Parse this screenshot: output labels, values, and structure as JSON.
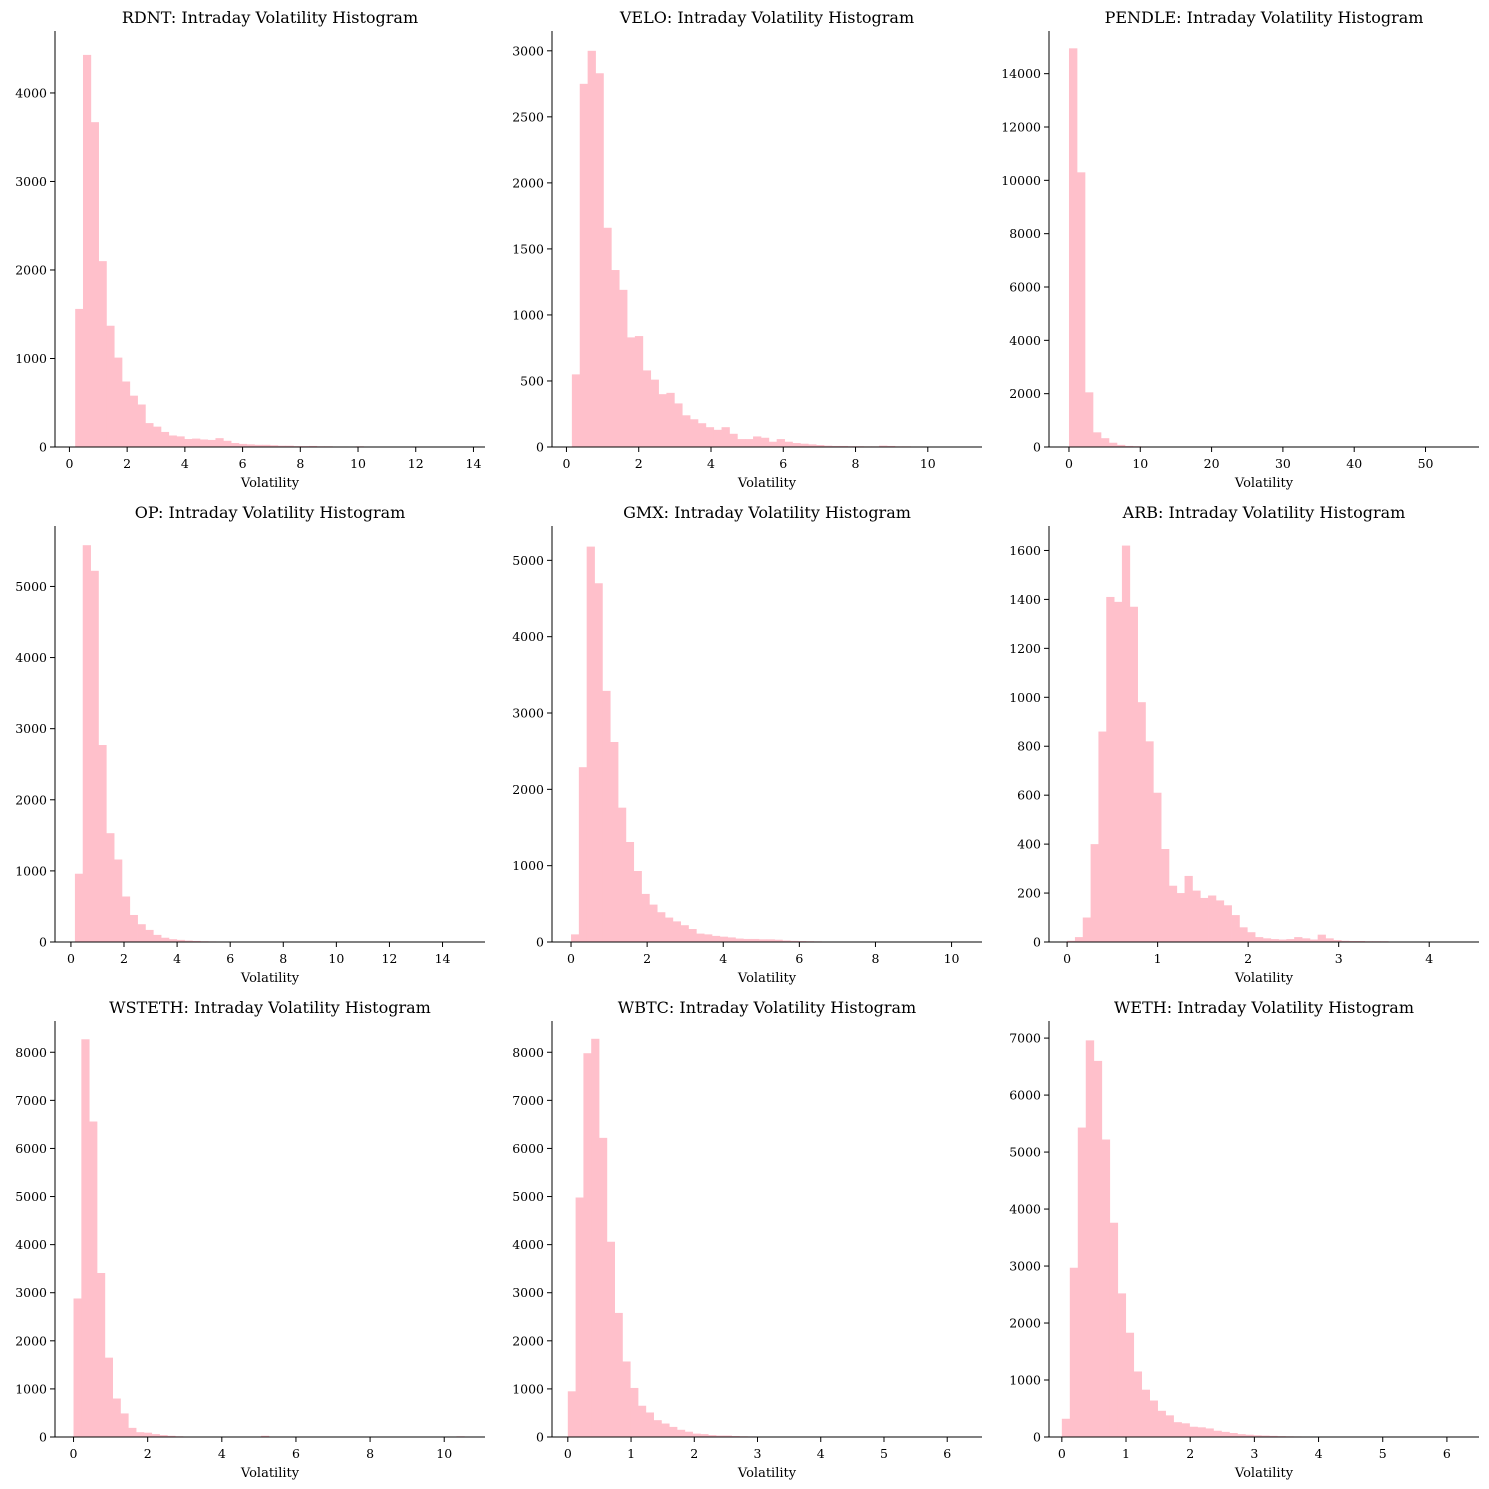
{
  "figure": {
    "bar_color": "#ffc0cb",
    "axis_color": "#000000",
    "background": "#ffffff"
  },
  "chart_data": [
    {
      "type": "bar",
      "title": "RDNT: Intraday Volatility Histogram",
      "xlabel": "Volatility",
      "ylabel": "",
      "xlim": [
        -0.5,
        14.4
      ],
      "ylim": [
        0,
        4700
      ],
      "xticks": [
        0,
        2,
        4,
        6,
        8,
        10,
        12,
        14
      ],
      "yticks": [
        0,
        1000,
        2000,
        3000,
        4000
      ],
      "bin_start": 0.2,
      "bin_width": 0.27,
      "values": [
        1560,
        4430,
        3670,
        2100,
        1370,
        1010,
        740,
        580,
        480,
        270,
        230,
        170,
        130,
        120,
        90,
        95,
        85,
        80,
        100,
        70,
        45,
        35,
        30,
        25,
        25,
        20,
        15,
        15,
        10,
        10,
        12,
        8,
        8,
        6,
        6,
        5,
        8,
        5,
        5,
        5,
        4,
        5,
        4,
        6,
        3,
        4,
        3,
        3,
        3,
        4
      ],
      "grid": false,
      "legend": "none"
    },
    {
      "type": "bar",
      "title": "VELO: Intraday Volatility Histogram",
      "xlabel": "Volatility",
      "ylabel": "",
      "xlim": [
        -0.4,
        11.5
      ],
      "ylim": [
        0,
        3150
      ],
      "xticks": [
        0,
        2,
        4,
        6,
        8,
        10
      ],
      "yticks": [
        0,
        500,
        1000,
        1500,
        2000,
        2500,
        3000
      ],
      "bin_start": 0.15,
      "bin_width": 0.218,
      "values": [
        550,
        2750,
        3000,
        2830,
        1660,
        1340,
        1190,
        830,
        840,
        580,
        510,
        400,
        410,
        330,
        240,
        210,
        180,
        150,
        130,
        150,
        100,
        60,
        60,
        80,
        70,
        40,
        60,
        40,
        30,
        25,
        20,
        15,
        10,
        8,
        8,
        6,
        6,
        5,
        5,
        10,
        8,
        5,
        5,
        4,
        4,
        3,
        3,
        3,
        2,
        2
      ],
      "grid": false,
      "legend": "none"
    },
    {
      "type": "bar",
      "title": "PENDLE: Intraday Volatility Histogram",
      "xlabel": "Volatility",
      "ylabel": "",
      "xlim": [
        -2.8,
        57.5
      ],
      "ylim": [
        0,
        15600
      ],
      "xticks": [
        0,
        10,
        20,
        30,
        40,
        50
      ],
      "yticks": [
        0,
        2000,
        4000,
        6000,
        8000,
        10000,
        12000,
        14000
      ],
      "bin_start": 0.0,
      "bin_width": 1.12,
      "values": [
        14950,
        10300,
        2050,
        550,
        330,
        160,
        80,
        40,
        30,
        20,
        10,
        8,
        6,
        5,
        4,
        3,
        3,
        2,
        2,
        2,
        2,
        2,
        1,
        1,
        1,
        1,
        1,
        1,
        1,
        1,
        1,
        1,
        1,
        1,
        1,
        1,
        1,
        1,
        1,
        1,
        1,
        1,
        1,
        1,
        1,
        1,
        1,
        1,
        1,
        20
      ],
      "grid": false,
      "legend": "none"
    },
    {
      "type": "bar",
      "title": "OP: Intraday Volatility Histogram",
      "xlabel": "Volatility",
      "ylabel": "",
      "xlim": [
        -0.6,
        15.6
      ],
      "ylim": [
        0,
        5850
      ],
      "xticks": [
        0,
        2,
        4,
        6,
        8,
        10,
        12,
        14
      ],
      "yticks": [
        0,
        1000,
        2000,
        3000,
        4000,
        5000
      ],
      "bin_start": 0.15,
      "bin_width": 0.295,
      "values": [
        960,
        5580,
        5220,
        2770,
        1530,
        1160,
        640,
        380,
        250,
        170,
        100,
        60,
        40,
        30,
        20,
        15,
        10,
        8,
        6,
        5,
        4,
        3,
        3,
        3,
        2,
        2,
        2,
        2,
        2,
        2,
        1,
        1,
        1,
        1,
        1,
        1,
        1,
        1,
        1,
        1,
        1,
        1,
        1,
        1,
        1,
        1,
        1,
        1,
        1,
        2
      ],
      "grid": false,
      "legend": "none"
    },
    {
      "type": "bar",
      "title": "GMX: Intraday Volatility Histogram",
      "xlabel": "Volatility",
      "ylabel": "",
      "xlim": [
        -0.5,
        10.8
      ],
      "ylim": [
        0,
        5450
      ],
      "xticks": [
        0,
        2,
        4,
        6,
        8,
        10
      ],
      "yticks": [
        0,
        1000,
        2000,
        3000,
        4000,
        5000
      ],
      "bin_start": 0.0,
      "bin_width": 0.2057,
      "values": [
        100,
        2290,
        5180,
        4700,
        3290,
        2620,
        1760,
        1310,
        930,
        630,
        490,
        390,
        320,
        270,
        220,
        170,
        110,
        100,
        80,
        70,
        60,
        45,
        40,
        40,
        35,
        35,
        30,
        20,
        15,
        12,
        10,
        8,
        6,
        5,
        5,
        4,
        4,
        3,
        3,
        3,
        2,
        2,
        2,
        2,
        2,
        2,
        2,
        1,
        1,
        1
      ],
      "grid": false,
      "legend": "none"
    },
    {
      "type": "bar",
      "title": "ARB: Intraday Volatility Histogram",
      "xlabel": "Volatility",
      "ylabel": "",
      "xlim": [
        -0.2,
        4.55
      ],
      "ylim": [
        0,
        1700
      ],
      "xticks": [
        0,
        1,
        2,
        3,
        4
      ],
      "yticks": [
        0,
        200,
        400,
        600,
        800,
        1000,
        1200,
        1400,
        1600
      ],
      "bin_start": 0.0,
      "bin_width": 0.0865,
      "values": [
        5,
        20,
        100,
        400,
        860,
        1410,
        1390,
        1620,
        1370,
        980,
        820,
        610,
        380,
        230,
        200,
        270,
        210,
        180,
        190,
        170,
        150,
        110,
        60,
        40,
        20,
        15,
        12,
        10,
        12,
        20,
        15,
        10,
        30,
        15,
        8,
        5,
        4,
        4,
        3,
        3,
        3,
        2,
        2,
        2,
        2,
        2,
        2,
        1,
        1,
        1
      ],
      "grid": false,
      "legend": "none"
    },
    {
      "type": "bar",
      "title": "WSTETH: Intraday Volatility Histogram",
      "xlabel": "Volatility",
      "ylabel": "",
      "xlim": [
        -0.5,
        11.1
      ],
      "ylim": [
        0,
        8650
      ],
      "xticks": [
        0,
        2,
        4,
        6,
        8,
        10
      ],
      "yticks": [
        0,
        1000,
        2000,
        3000,
        4000,
        5000,
        6000,
        7000,
        8000
      ],
      "bin_start": 0.0,
      "bin_width": 0.2108,
      "values": [
        2880,
        8270,
        6560,
        3410,
        1650,
        800,
        490,
        190,
        100,
        90,
        60,
        40,
        25,
        15,
        10,
        8,
        6,
        5,
        4,
        4,
        3,
        3,
        3,
        3,
        25,
        5,
        3,
        3,
        2,
        2,
        2,
        2,
        2,
        2,
        2,
        2,
        2,
        1,
        1,
        1,
        1,
        1,
        1,
        1,
        1,
        1,
        1,
        1,
        1,
        15
      ],
      "grid": false,
      "legend": "none"
    },
    {
      "type": "bar",
      "title": "WBTC: Intraday Volatility Histogram",
      "xlabel": "Volatility",
      "ylabel": "",
      "xlim": [
        -0.25,
        6.55
      ],
      "ylim": [
        0,
        8650
      ],
      "xticks": [
        0,
        1,
        2,
        3,
        4,
        5,
        6
      ],
      "yticks": [
        0,
        1000,
        2000,
        3000,
        4000,
        5000,
        6000,
        7000,
        8000
      ],
      "bin_start": 0.0,
      "bin_width": 0.1233,
      "values": [
        950,
        4980,
        7980,
        8280,
        6220,
        4060,
        2580,
        1570,
        1020,
        650,
        510,
        350,
        280,
        210,
        150,
        110,
        70,
        60,
        40,
        30,
        30,
        20,
        15,
        12,
        10,
        10,
        8,
        8,
        6,
        5,
        5,
        4,
        4,
        3,
        3,
        3,
        2,
        2,
        2,
        2,
        2,
        2,
        2,
        2,
        2,
        1,
        1,
        1,
        1,
        1
      ],
      "grid": false,
      "legend": "none"
    },
    {
      "type": "bar",
      "title": "WETH: Intraday Volatility Histogram",
      "xlabel": "Volatility",
      "ylabel": "",
      "xlim": [
        -0.2,
        6.5
      ],
      "ylim": [
        0,
        7300
      ],
      "xticks": [
        0,
        1,
        2,
        3,
        4,
        5,
        6
      ],
      "yticks": [
        0,
        1000,
        2000,
        3000,
        4000,
        5000,
        6000,
        7000
      ],
      "bin_start": 0.0,
      "bin_width": 0.1243,
      "values": [
        320,
        2970,
        5430,
        6960,
        6600,
        5220,
        3760,
        2520,
        1830,
        1150,
        830,
        640,
        460,
        380,
        260,
        240,
        180,
        170,
        150,
        110,
        90,
        70,
        50,
        40,
        30,
        25,
        20,
        15,
        12,
        10,
        8,
        6,
        6,
        5,
        5,
        4,
        4,
        5,
        3,
        3,
        3,
        2,
        2,
        2,
        2,
        2,
        2,
        2,
        1,
        1
      ],
      "grid": false,
      "legend": "none"
    }
  ]
}
